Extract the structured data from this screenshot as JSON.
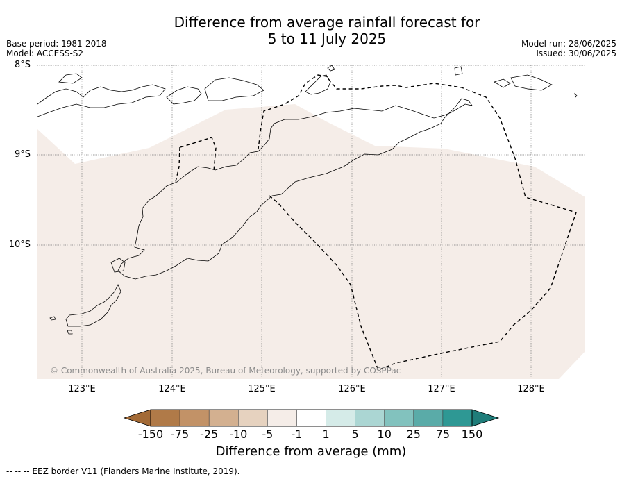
{
  "title": {
    "line1": "Difference from average rainfall forecast for",
    "line2": "5 to 11 July 2025"
  },
  "meta_left": {
    "base_period": "Base period: 1981-2018",
    "model": "Model: ACCESS-S2"
  },
  "meta_right": {
    "model_run": "Model run: 28/06/2025",
    "issued": "Issued: 30/06/2025"
  },
  "map": {
    "lat_labels": [
      "8°S",
      "9°S",
      "10°S"
    ],
    "lon_labels": [
      "123°E",
      "124°E",
      "125°E",
      "126°E",
      "127°E",
      "128°E"
    ],
    "copyright": "© Commonwealth of Australia 2025, Bureau of Meteorology, supported by COSPPac",
    "forecast_category": "-1",
    "forecast_fill_color": "#f5ede8",
    "eez_border_style": "dashed"
  },
  "colorbar": {
    "tick_labels": [
      "-150",
      "-75",
      "-25",
      "-10",
      "-5",
      "-1",
      "1",
      "5",
      "10",
      "25",
      "75",
      "150"
    ],
    "colors": [
      "#a36a36",
      "#b07a48",
      "#c29267",
      "#d3b090",
      "#e6d2bf",
      "#f5ede8",
      "#ffffff",
      "#d5ebe8",
      "#abd6d3",
      "#82c2be",
      "#5aaba8",
      "#2e9894",
      "#1f7d7a"
    ],
    "label": "Difference from average (mm)"
  },
  "legend": {
    "eez": "--  --  -- EEZ border V11 (Flanders Marine Institute, 2019)."
  }
}
